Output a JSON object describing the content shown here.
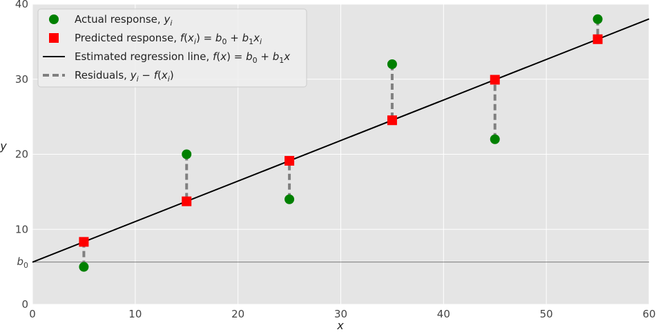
{
  "chart_data": {
    "type": "scatter",
    "xlabel": "x",
    "ylabel": "y",
    "xlim": [
      0,
      60
    ],
    "ylim": [
      0,
      40
    ],
    "xticks": [
      0,
      10,
      20,
      30,
      40,
      50,
      60
    ],
    "yticks": [
      0,
      10,
      20,
      30,
      40
    ],
    "y_tick_labels": [
      "0",
      "10",
      "20",
      "30",
      "40"
    ],
    "x_tick_labels": [
      "0",
      "10",
      "20",
      "30",
      "40",
      "50",
      "60"
    ],
    "grid": true,
    "background": "#e5e5e5",
    "legend_position": "top-left",
    "b0_label": "b0",
    "intercept": 5.63,
    "slope": 0.54,
    "x": [
      5,
      15,
      25,
      35,
      45,
      55
    ],
    "series": [
      {
        "name": "Actual response, yi",
        "marker": "circle",
        "color": "#008000",
        "values": [
          5,
          20,
          14,
          32,
          22,
          38
        ]
      },
      {
        "name": "Predicted response, f(xi) = b0 + b1xi",
        "marker": "square",
        "color": "#ff0000",
        "values": [
          8.33,
          13.73,
          19.13,
          24.53,
          29.93,
          35.33
        ]
      },
      {
        "name": "Estimated regression line, f(x) = b0 + b1x",
        "style": "solid-line",
        "color": "#000000"
      },
      {
        "name": "Residuals, yi − f(xi)",
        "style": "dashed-line",
        "color": "#808080"
      }
    ],
    "legend": {
      "actual": {
        "pre": "Actual response, ",
        "formula": "yi"
      },
      "predicted": {
        "pre": "Predicted response, ",
        "formula": "f(xi) = b0 + b1xi"
      },
      "line": {
        "pre": "Estimated regression line, ",
        "formula": "f(x) = b0 + b1x"
      },
      "residuals": {
        "pre": "Residuals, ",
        "formula": "yi − f(xi)"
      }
    }
  }
}
